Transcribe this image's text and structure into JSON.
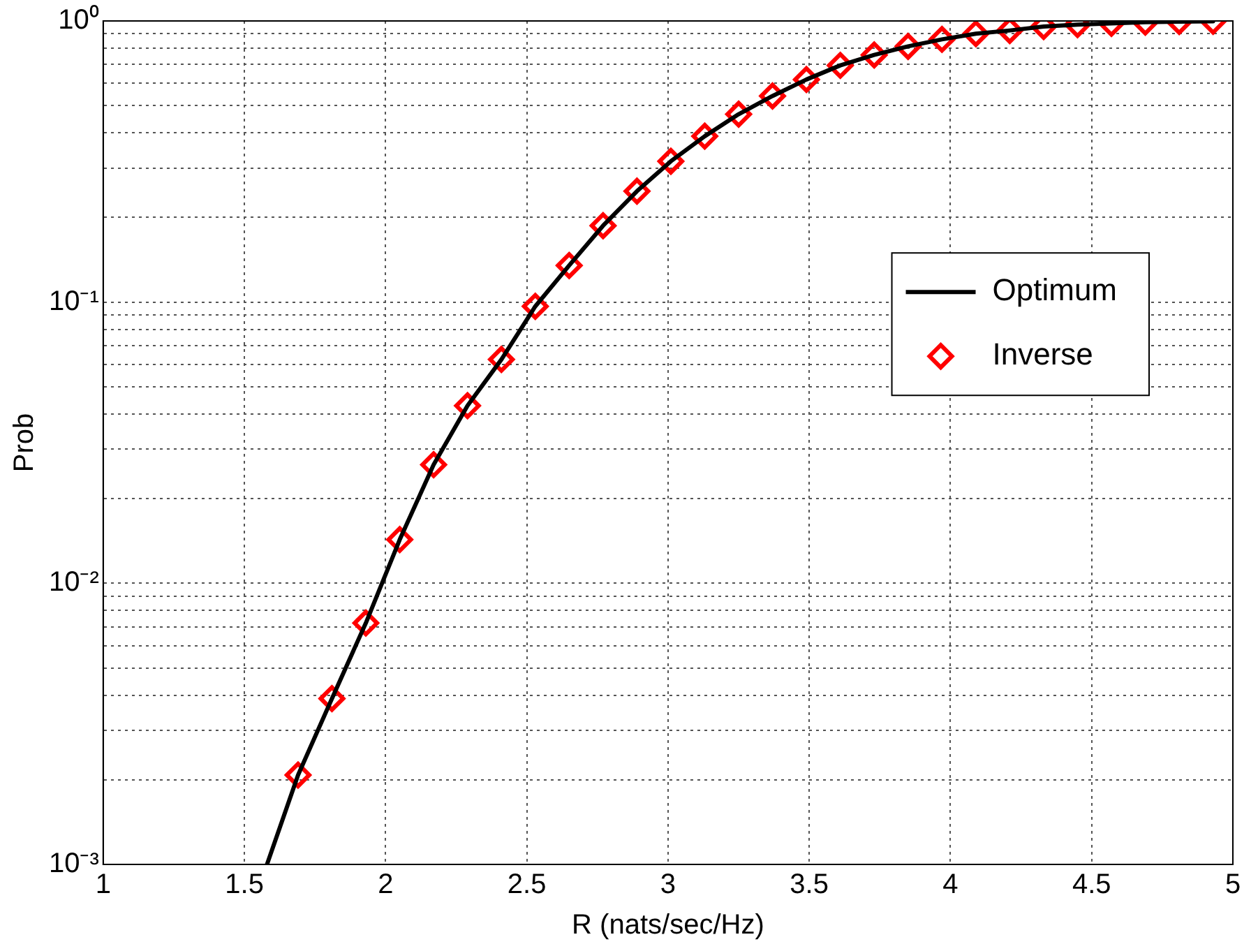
{
  "chart_data": {
    "type": "line",
    "xlabel": "R (nats/sec/Hz)",
    "ylabel": "Prob",
    "log": "y",
    "grid": true,
    "legend": "right",
    "xlim": [
      1,
      5
    ],
    "xticks": [
      1,
      1.5,
      2,
      2.5,
      3,
      3.5,
      4,
      4.5,
      5
    ],
    "ylim": [
      0.001,
      1
    ],
    "yticks": [
      {
        "value": 0.001,
        "label": "10⁻³"
      },
      {
        "value": 0.002,
        "label": null
      },
      {
        "value": 0.003,
        "label": null
      },
      {
        "value": 0.004,
        "label": null
      },
      {
        "value": 0.005,
        "label": null
      },
      {
        "value": 0.006,
        "label": null
      },
      {
        "value": 0.007,
        "label": null
      },
      {
        "value": 0.008,
        "label": null
      },
      {
        "value": 0.009,
        "label": null
      },
      {
        "value": 0.01,
        "label": "10⁻²"
      },
      {
        "value": 0.02,
        "label": null
      },
      {
        "value": 0.03,
        "label": null
      },
      {
        "value": 0.04,
        "label": null
      },
      {
        "value": 0.05,
        "label": null
      },
      {
        "value": 0.06,
        "label": null
      },
      {
        "value": 0.07,
        "label": null
      },
      {
        "value": 0.08,
        "label": null
      },
      {
        "value": 0.09,
        "label": null
      },
      {
        "value": 0.1,
        "label": "10⁻¹"
      },
      {
        "value": 0.2,
        "label": null
      },
      {
        "value": 0.3,
        "label": null
      },
      {
        "value": 0.4,
        "label": null
      },
      {
        "value": 0.5,
        "label": null
      },
      {
        "value": 0.6,
        "label": null
      },
      {
        "value": 0.7,
        "label": null
      },
      {
        "value": 0.8,
        "label": null
      },
      {
        "value": 0.9,
        "label": null
      },
      {
        "value": 1,
        "label": "10⁰"
      }
    ],
    "series": [
      {
        "name": "Optimum",
        "type": "line",
        "color": "#000000",
        "marker": "none",
        "line_style": "solid",
        "x": [
          1.58,
          1.69,
          1.81,
          1.93,
          2.05,
          2.17,
          2.29,
          2.41,
          2.53,
          2.65,
          2.77,
          2.89,
          3.01,
          3.13,
          3.25,
          3.37,
          3.49,
          3.61,
          3.73,
          3.85,
          3.97,
          4.09,
          4.21,
          4.33,
          4.45,
          4.57,
          4.69,
          4.81,
          4.93
        ],
        "values": [
          0.001,
          0.00208,
          0.00389,
          0.00722,
          0.0143,
          0.0264,
          0.0428,
          0.0625,
          0.0966,
          0.135,
          0.187,
          0.248,
          0.317,
          0.389,
          0.466,
          0.541,
          0.619,
          0.695,
          0.757,
          0.812,
          0.86,
          0.901,
          0.925,
          0.955,
          0.97,
          0.98,
          0.99,
          0.995,
          0.997
        ]
      },
      {
        "name": "Inverse",
        "type": "scatter",
        "color": "#ff0000",
        "marker": "diamond",
        "x": [
          1.69,
          1.81,
          1.93,
          2.05,
          2.17,
          2.29,
          2.41,
          2.53,
          2.65,
          2.77,
          2.89,
          3.01,
          3.13,
          3.25,
          3.37,
          3.49,
          3.61,
          3.73,
          3.85,
          3.97,
          4.09,
          4.21,
          4.33,
          4.45,
          4.57,
          4.69,
          4.81,
          4.93
        ],
        "values": [
          0.00208,
          0.00389,
          0.00722,
          0.0143,
          0.0264,
          0.0428,
          0.0625,
          0.0966,
          0.135,
          0.187,
          0.248,
          0.317,
          0.389,
          0.466,
          0.541,
          0.619,
          0.695,
          0.757,
          0.812,
          0.86,
          0.901,
          0.925,
          0.955,
          0.97,
          0.98,
          0.99,
          0.995,
          0.997
        ]
      }
    ]
  }
}
